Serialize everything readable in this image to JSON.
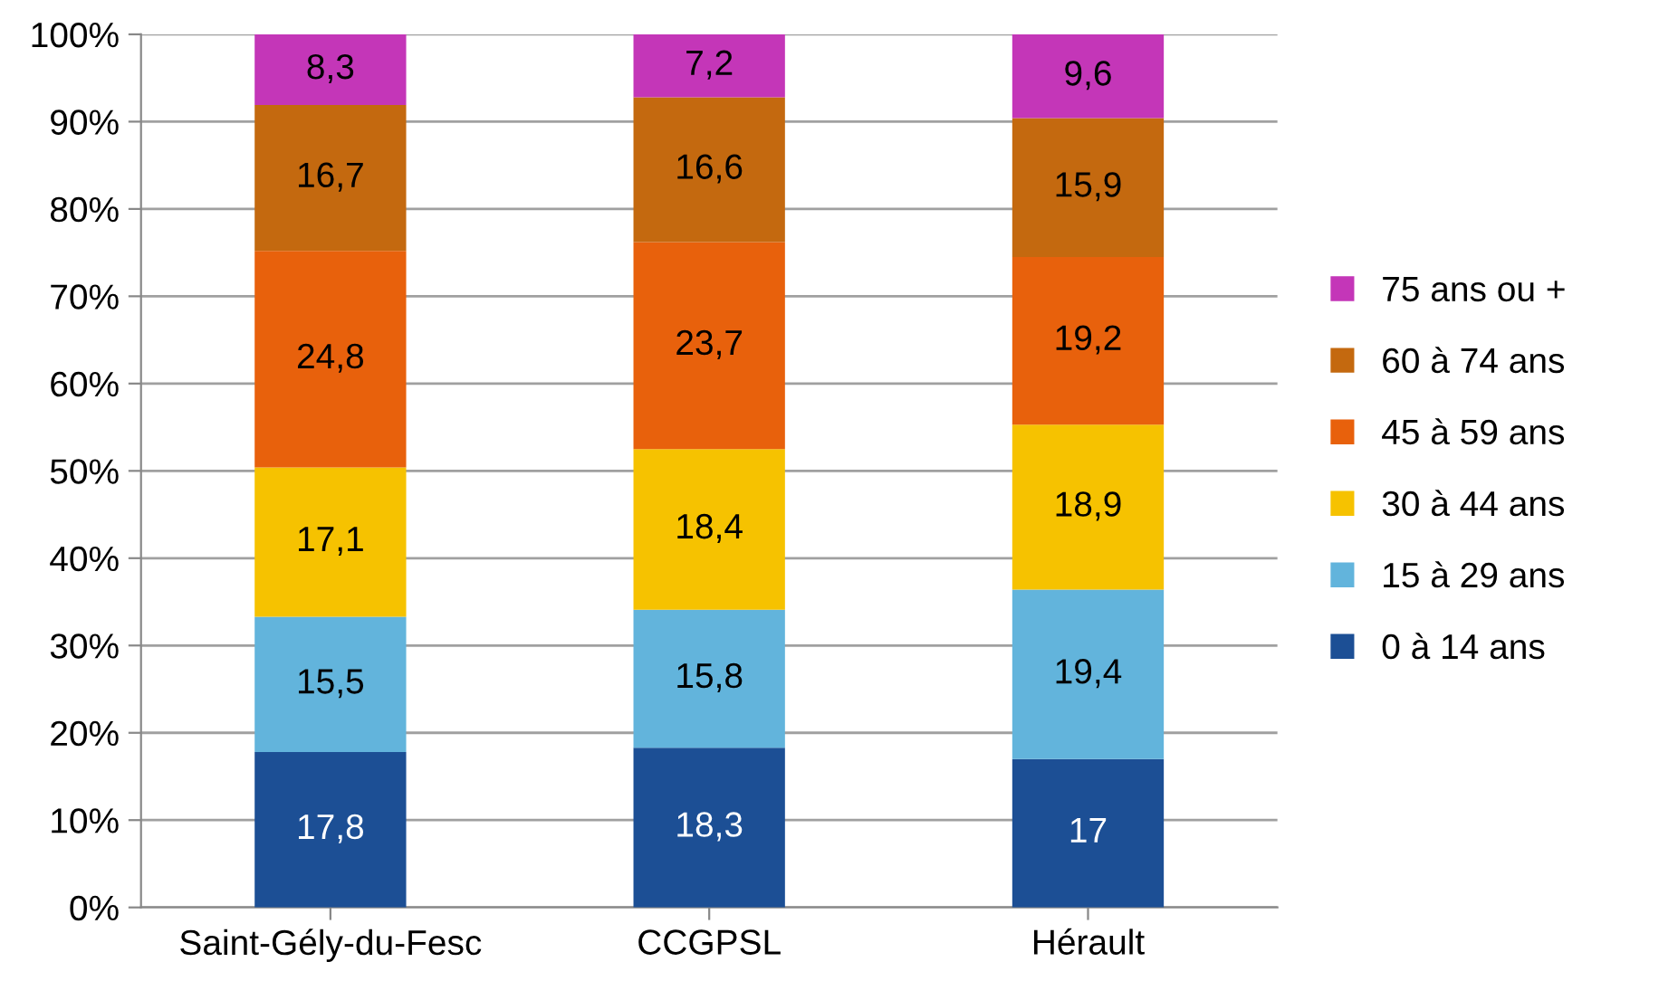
{
  "chart_data": {
    "type": "bar",
    "stacked": true,
    "categories": [
      "Saint-Gély-du-Fesc",
      "CCGPSL",
      "Hérault"
    ],
    "series": [
      {
        "name": "0 à 14 ans",
        "color": "#1c4f95",
        "values": [
          17.8,
          18.3,
          17
        ],
        "value_labels": [
          "17,8",
          "18,3",
          "17"
        ]
      },
      {
        "name": "15 à 29 ans",
        "color": "#62b4dc",
        "values": [
          15.5,
          15.8,
          19.4
        ],
        "value_labels": [
          "15,5",
          "15,8",
          "19,4"
        ]
      },
      {
        "name": "30 à 44 ans",
        "color": "#f6c200",
        "values": [
          17.1,
          18.4,
          18.9
        ],
        "value_labels": [
          "17,1",
          "18,4",
          "18,9"
        ]
      },
      {
        "name": "45 à 59 ans",
        "color": "#e8610c",
        "values": [
          24.8,
          23.7,
          19.2
        ],
        "value_labels": [
          "24,8",
          "23,7",
          "19,2"
        ]
      },
      {
        "name": "60 à 74 ans",
        "color": "#c4690f",
        "values": [
          16.7,
          16.6,
          15.9
        ],
        "value_labels": [
          "16,7",
          "16,6",
          "15,9"
        ]
      },
      {
        "name": "75 ans ou +",
        "color": "#c436b8",
        "values": [
          8.3,
          7.2,
          9.6
        ],
        "value_labels": [
          "8,3",
          "7,2",
          "9,6"
        ]
      }
    ],
    "ylim": [
      0,
      100
    ],
    "yticks": [
      {
        "value": 0,
        "label": "0%"
      },
      {
        "value": 10,
        "label": "10%"
      },
      {
        "value": 20,
        "label": "20%"
      },
      {
        "value": 30,
        "label": "30%"
      },
      {
        "value": 40,
        "label": "40%"
      },
      {
        "value": 50,
        "label": "50%"
      },
      {
        "value": 60,
        "label": "60%"
      },
      {
        "value": 70,
        "label": "70%"
      },
      {
        "value": 80,
        "label": "80%"
      },
      {
        "value": 90,
        "label": "90%"
      },
      {
        "value": 100,
        "label": "100%"
      }
    ],
    "grid": "y",
    "legend": "right"
  }
}
